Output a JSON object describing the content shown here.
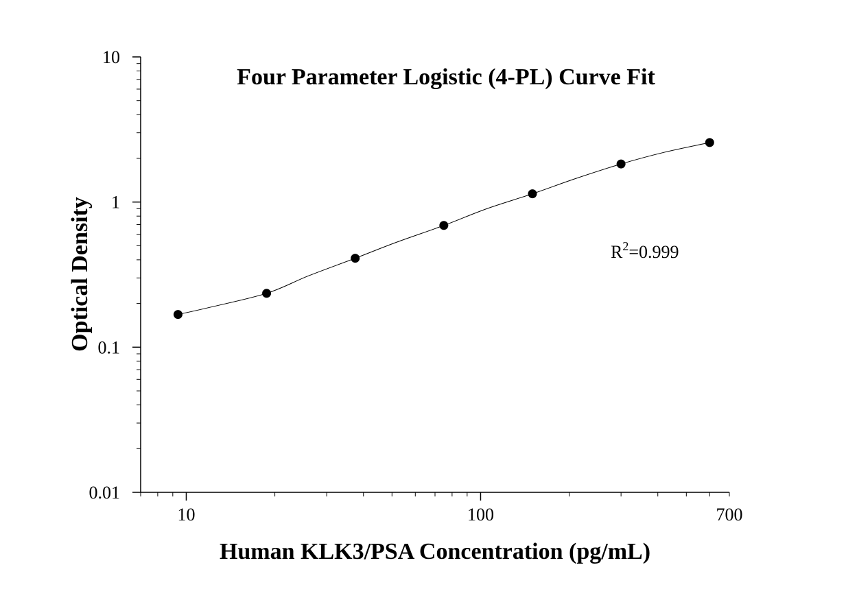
{
  "chart_data": {
    "type": "scatter",
    "title": "Four Parameter Logistic (4-PL) Curve Fit",
    "xlabel": "Human KLK3/PSA Concentration (pg/mL)",
    "ylabel": "Optical Density",
    "x_scale": "log",
    "y_scale": "log",
    "xlim": [
      7,
      700
    ],
    "ylim": [
      0.01,
      10
    ],
    "x_ticks": [
      {
        "value": 10,
        "label": "10"
      },
      {
        "value": 100,
        "label": "100"
      },
      {
        "value": 700,
        "label": "700"
      }
    ],
    "y_ticks": [
      {
        "value": 0.01,
        "label": "0.01"
      },
      {
        "value": 0.1,
        "label": "0.1"
      },
      {
        "value": 1,
        "label": "1"
      },
      {
        "value": 10,
        "label": "10"
      }
    ],
    "grid": false,
    "series": [
      {
        "x": [
          9.375,
          18.75,
          37.5,
          75,
          150,
          300,
          600
        ],
        "y": [
          0.168,
          0.235,
          0.41,
          0.69,
          1.14,
          1.83,
          2.57
        ]
      }
    ],
    "fit_curve": {
      "model": "4PL",
      "points": [
        [
          9.375,
          0.168
        ],
        [
          12,
          0.188
        ],
        [
          18.75,
          0.235
        ],
        [
          26,
          0.31
        ],
        [
          37.5,
          0.41
        ],
        [
          52,
          0.53
        ],
        [
          75,
          0.69
        ],
        [
          105,
          0.9
        ],
        [
          150,
          1.14
        ],
        [
          210,
          1.45
        ],
        [
          300,
          1.83
        ],
        [
          420,
          2.2
        ],
        [
          600,
          2.57
        ]
      ]
    },
    "annotation": {
      "base": "R",
      "superscript": "2",
      "rest": "=0.999"
    }
  }
}
